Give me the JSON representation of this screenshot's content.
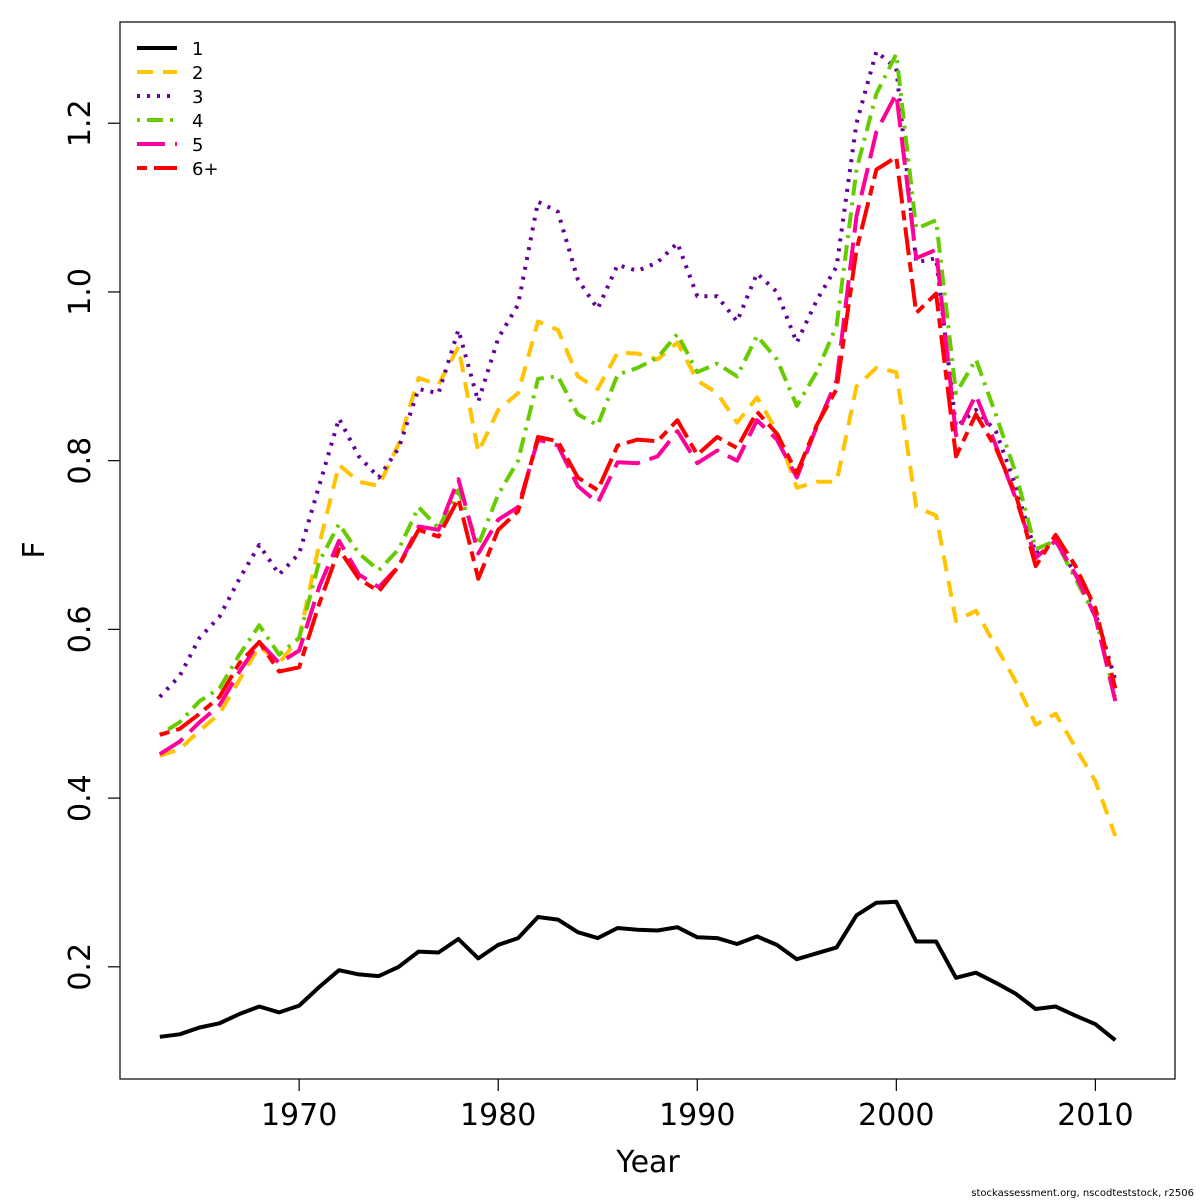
{
  "chart_data": {
    "type": "line",
    "xlabel": "Year",
    "ylabel": "F",
    "xlim": [
      1961,
      2014
    ],
    "ylim": [
      0.067,
      1.32
    ],
    "x_ticks": [
      1970,
      1980,
      1990,
      2000,
      2010
    ],
    "x_tick_labels": [
      "1970",
      "1980",
      "1990",
      "2000",
      "2010"
    ],
    "y_ticks": [
      0.2,
      0.4,
      0.6,
      0.8,
      1.0,
      1.2
    ],
    "y_tick_labels": [
      "0.2",
      "0.4",
      "0.6",
      "0.8",
      "1.0",
      "1.2"
    ],
    "grid": false,
    "legend_position": "top-left",
    "x": [
      1963,
      1964,
      1965,
      1966,
      1967,
      1968,
      1969,
      1970,
      1971,
      1972,
      1973,
      1974,
      1975,
      1976,
      1977,
      1978,
      1979,
      1980,
      1981,
      1982,
      1983,
      1984,
      1985,
      1986,
      1987,
      1988,
      1989,
      1990,
      1991,
      1992,
      1993,
      1994,
      1995,
      1996,
      1997,
      1998,
      1999,
      2000,
      2001,
      2002,
      2003,
      2004,
      2005,
      2006,
      2007,
      2008,
      2009,
      2010,
      2011
    ],
    "series": [
      {
        "name": "1",
        "color": "#000000",
        "dash": "solid",
        "values": [
          0.117,
          0.12,
          0.128,
          0.133,
          0.144,
          0.153,
          0.146,
          0.154,
          0.176,
          0.196,
          0.191,
          0.189,
          0.2,
          0.218,
          0.217,
          0.233,
          0.21,
          0.226,
          0.234,
          0.259,
          0.256,
          0.241,
          0.234,
          0.246,
          0.244,
          0.243,
          0.247,
          0.235,
          0.234,
          0.227,
          0.236,
          0.226,
          0.209,
          0.216,
          0.223,
          0.261,
          0.276,
          0.277,
          0.23,
          0.23,
          0.187,
          0.193,
          0.181,
          0.168,
          0.15,
          0.153,
          0.142,
          0.132,
          0.113
        ]
      },
      {
        "name": "2",
        "color": "#FFC300",
        "dash": "dashed",
        "values": [
          0.45,
          0.458,
          0.48,
          0.5,
          0.54,
          0.58,
          0.56,
          0.59,
          0.7,
          0.795,
          0.775,
          0.77,
          0.82,
          0.898,
          0.89,
          0.935,
          0.81,
          0.86,
          0.88,
          0.965,
          0.955,
          0.9,
          0.885,
          0.928,
          0.927,
          0.92,
          0.94,
          0.895,
          0.88,
          0.845,
          0.875,
          0.835,
          0.768,
          0.775,
          0.775,
          0.888,
          0.91,
          0.905,
          0.745,
          0.735,
          0.61,
          0.622,
          0.58,
          0.538,
          0.487,
          0.5,
          0.46,
          0.42,
          0.355
        ]
      },
      {
        "name": "3",
        "color": "#660099",
        "dash": "dotted",
        "values": [
          0.52,
          0.545,
          0.59,
          0.615,
          0.66,
          0.7,
          0.665,
          0.69,
          0.77,
          0.85,
          0.805,
          0.78,
          0.815,
          0.885,
          0.88,
          0.955,
          0.87,
          0.945,
          0.985,
          1.107,
          1.095,
          1.015,
          0.98,
          1.032,
          1.025,
          1.035,
          1.058,
          0.995,
          0.995,
          0.965,
          1.022,
          1.0,
          0.94,
          0.99,
          1.03,
          1.2,
          1.285,
          1.265,
          1.035,
          1.04,
          0.84,
          0.86,
          0.835,
          0.77,
          0.69,
          0.705,
          0.665,
          0.62,
          0.54
        ]
      },
      {
        "name": "4",
        "color": "#66CC00",
        "dash": "dotdash",
        "values": [
          0.475,
          0.49,
          0.515,
          0.53,
          0.57,
          0.605,
          0.57,
          0.59,
          0.68,
          0.725,
          0.69,
          0.67,
          0.695,
          0.745,
          0.72,
          0.765,
          0.7,
          0.76,
          0.8,
          0.897,
          0.9,
          0.855,
          0.842,
          0.902,
          0.91,
          0.922,
          0.95,
          0.905,
          0.915,
          0.9,
          0.948,
          0.92,
          0.865,
          0.905,
          0.96,
          1.145,
          1.235,
          1.282,
          1.075,
          1.085,
          0.88,
          0.92,
          0.855,
          0.785,
          0.695,
          0.705,
          0.66,
          0.615,
          0.52
        ]
      },
      {
        "name": "5",
        "color": "#FF0099",
        "dash": "longdash",
        "values": [
          0.452,
          0.467,
          0.49,
          0.51,
          0.55,
          0.585,
          0.56,
          0.575,
          0.65,
          0.705,
          0.665,
          0.65,
          0.675,
          0.722,
          0.718,
          0.778,
          0.69,
          0.73,
          0.745,
          0.825,
          0.818,
          0.77,
          0.75,
          0.798,
          0.797,
          0.805,
          0.835,
          0.797,
          0.812,
          0.8,
          0.848,
          0.825,
          0.78,
          0.84,
          0.895,
          1.09,
          1.19,
          1.235,
          1.04,
          1.05,
          0.83,
          0.878,
          0.818,
          0.755,
          0.685,
          0.705,
          0.665,
          0.615,
          0.515
        ]
      },
      {
        "name": "6+",
        "color": "#FF0000",
        "dash": "twodash",
        "values": [
          0.475,
          0.482,
          0.5,
          0.52,
          0.56,
          0.585,
          0.55,
          0.555,
          0.63,
          0.695,
          0.66,
          0.645,
          0.675,
          0.718,
          0.71,
          0.755,
          0.66,
          0.718,
          0.74,
          0.828,
          0.823,
          0.78,
          0.765,
          0.818,
          0.825,
          0.823,
          0.848,
          0.807,
          0.828,
          0.815,
          0.858,
          0.832,
          0.785,
          0.842,
          0.885,
          1.05,
          1.145,
          1.16,
          0.975,
          0.998,
          0.805,
          0.855,
          0.815,
          0.76,
          0.675,
          0.712,
          0.675,
          0.625,
          0.53
        ]
      }
    ]
  },
  "footer": "stockassessment.org, nscodteststock, r2506"
}
